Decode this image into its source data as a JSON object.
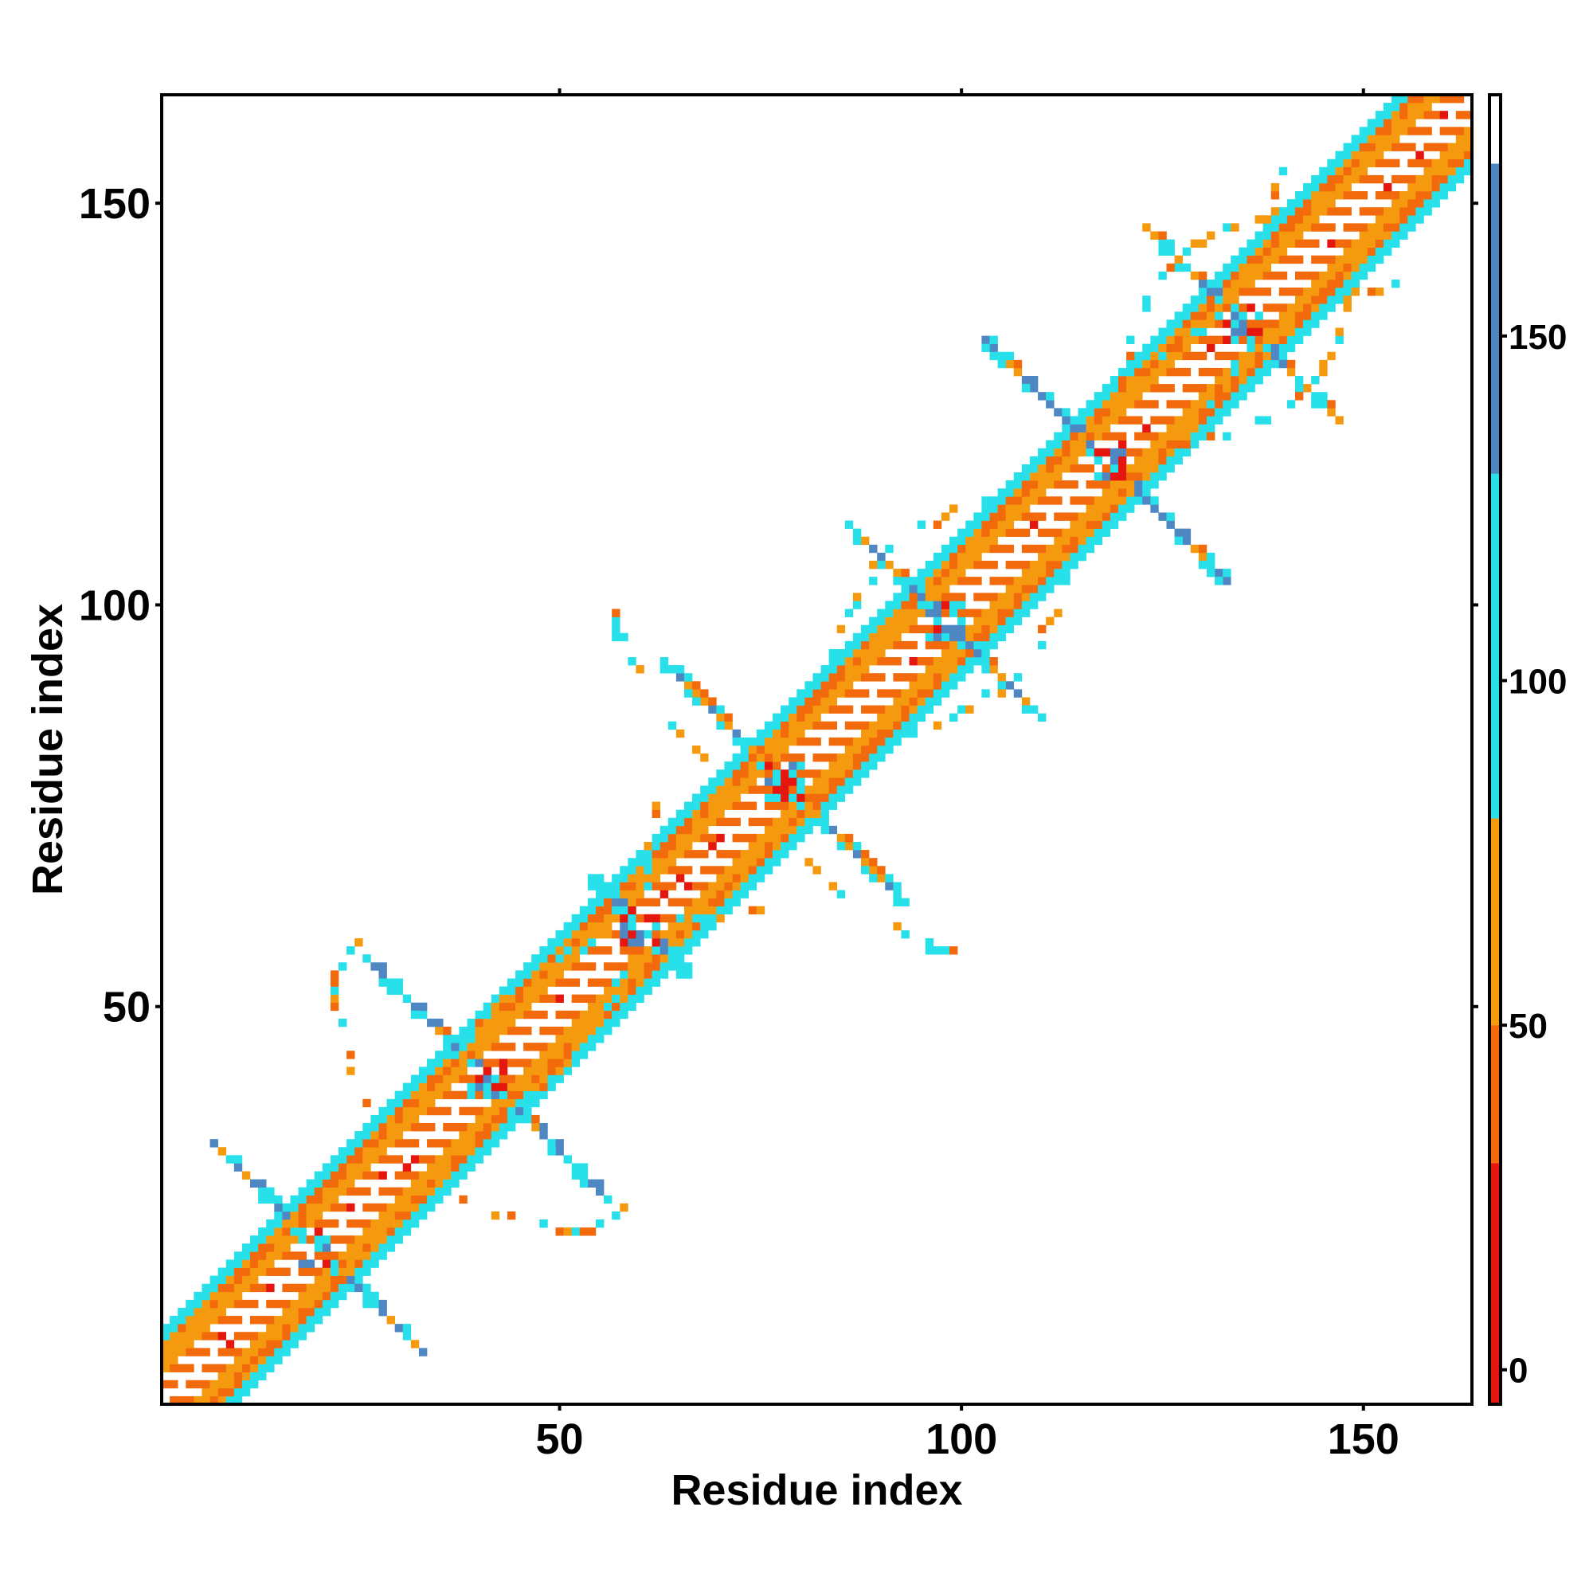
{
  "chart_data": {
    "type": "heatmap",
    "title": "",
    "xlabel": "Residue index",
    "ylabel": "Residue index",
    "xlim": [
      0.5,
      163.5
    ],
    "ylim": [
      0.5,
      163.5
    ],
    "xticks": [
      50,
      100,
      150
    ],
    "yticks": [
      50,
      100,
      150
    ],
    "grid": false,
    "colorbar": {
      "range": [
        -5,
        185
      ],
      "ticks": [
        0,
        50,
        100,
        150
      ],
      "bands": [
        {
          "from": -5,
          "to": 30,
          "color": "#e4160e"
        },
        {
          "from": 30,
          "to": 50,
          "color": "#f26a0c"
        },
        {
          "from": 50,
          "to": 80,
          "color": "#f59a0e"
        },
        {
          "from": 80,
          "to": 130,
          "color": "#27e0ea"
        },
        {
          "from": 130,
          "to": 175,
          "color": "#4e87c2"
        },
        {
          "from": 175,
          "to": 185,
          "color": "#ffffff"
        }
      ]
    },
    "diagonal": {
      "start": 1,
      "end": 163,
      "half_width": 9
    },
    "hairpins": [
      {
        "center": [
          20,
          20
        ],
        "direction": "anti",
        "length": 13
      },
      {
        "center": [
          41,
          41
        ],
        "direction": "anti",
        "length": 15
      },
      {
        "center": [
          78,
          78
        ],
        "direction": "anti",
        "length": 15
      },
      {
        "center": [
          98,
          98
        ],
        "direction": "anti",
        "length": 12
      },
      {
        "center": [
          118,
          118
        ],
        "direction": "anti",
        "length": 15
      },
      {
        "center": [
          135,
          135
        ],
        "direction": "anti",
        "length": 12
      },
      {
        "center": [
          60,
          60
        ],
        "direction": "anti",
        "length": 6
      }
    ],
    "arcs": [
      {
        "from": [
          44,
          37
        ],
        "to": [
          62,
          75
        ]
      },
      {
        "from": [
          79,
          69
        ],
        "to": [
          99,
          57
        ]
      },
      {
        "from": [
          36,
          27
        ],
        "to": [
          58,
          25
        ]
      },
      {
        "from": [
          93,
          84
        ],
        "to": [
          114,
          108
        ]
      },
      {
        "from": [
          128,
          120
        ],
        "to": [
          149,
          140
        ]
      },
      {
        "from": [
          119,
          128
        ],
        "to": [
          140,
          155
        ]
      }
    ]
  }
}
